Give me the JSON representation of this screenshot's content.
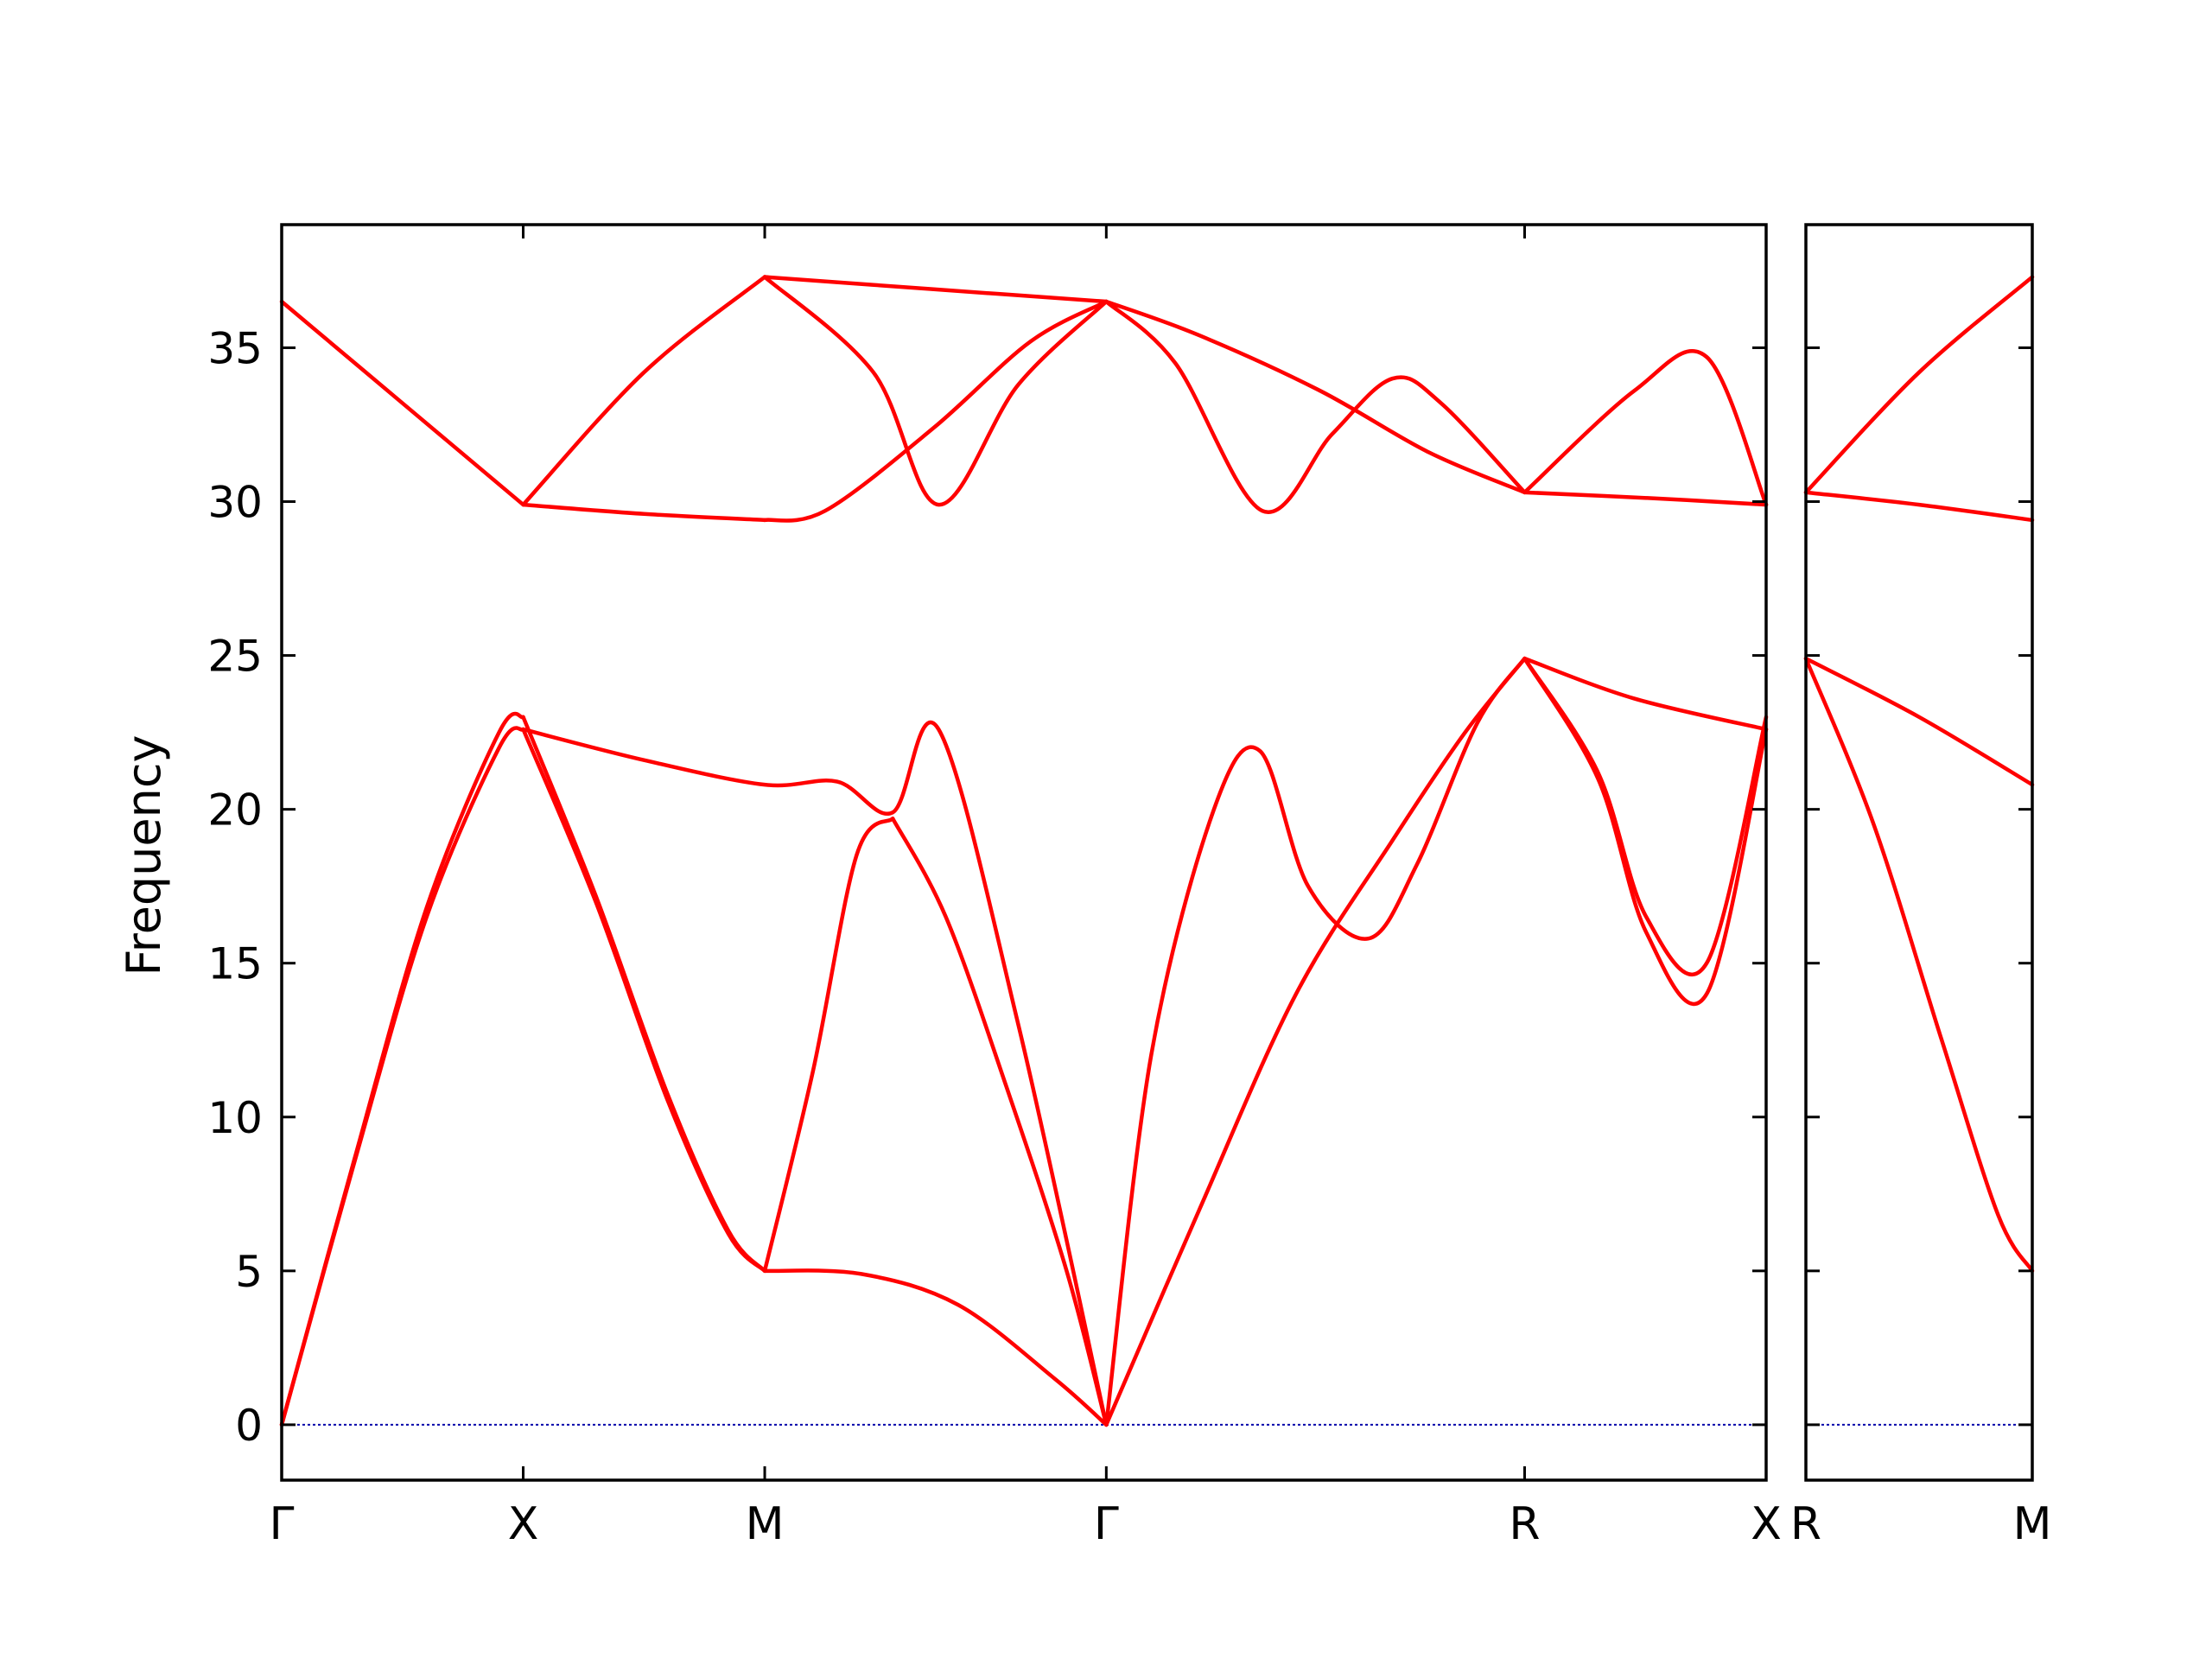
{
  "chart_data": {
    "type": "line",
    "ylabel": "Frequency",
    "ylim": [
      -1.8,
      39
    ],
    "y_ticks": [
      "0",
      "5",
      "10",
      "15",
      "20",
      "25",
      "30",
      "35"
    ],
    "line_color": "#ff0000",
    "zero_line_color": "#0000aa",
    "grid": false,
    "panels": [
      {
        "segment_labels": [
          "Γ",
          "X",
          "M",
          "Γ",
          "R",
          "X"
        ],
        "segment_positions": [
          0,
          1,
          2,
          3.4142,
          5.1463,
          6.1463
        ],
        "branches": [
          {
            "x": [
              0,
              0.5,
              1
            ],
            "y": [
              36.5,
              33.2,
              29.9
            ]
          },
          {
            "x": [
              1,
              1.5,
              2
            ],
            "y": [
              29.9,
              34.2,
              37.3
            ]
          },
          {
            "x": [
              1,
              1.5,
              2
            ],
            "y": [
              29.9,
              29.6,
              29.4
            ]
          },
          {
            "x": [
              2,
              2.7,
              3.4142
            ],
            "y": [
              37.3,
              36.9,
              36.5
            ]
          },
          {
            "x": [
              2,
              2.45,
              2.72,
              3.05,
              3.4142
            ],
            "y": [
              37.3,
              34.2,
              29.9,
              33.8,
              36.5
            ]
          },
          {
            "x": [
              2,
              2.25,
              2.7,
              3.1,
              3.4142
            ],
            "y": [
              29.4,
              29.7,
              32.4,
              35.2,
              36.5
            ]
          },
          {
            "x": [
              3.4142,
              3.8,
              4.3,
              4.75,
              5.1463
            ],
            "y": [
              36.5,
              35.4,
              33.6,
              31.6,
              30.3
            ]
          },
          {
            "x": [
              3.4142,
              3.7,
              4.06,
              4.35,
              4.6,
              4.8,
              5.1463
            ],
            "y": [
              36.5,
              34.5,
              29.7,
              32.2,
              34.0,
              33.2,
              30.3
            ]
          },
          {
            "x": [
              5.1463,
              5.6,
              5.9,
              6.1463
            ],
            "y": [
              30.3,
              33.6,
              34.7,
              29.9
            ]
          },
          {
            "x": [
              5.1463,
              5.7,
              6.1463
            ],
            "y": [
              30.3,
              30.1,
              29.9
            ]
          },
          {
            "x": [
              0,
              0.3,
              0.6,
              0.9,
              1
            ],
            "y": [
              0,
              8.5,
              16.5,
              22.0,
              22.6
            ]
          },
          {
            "x": [
              0,
              0.3,
              0.6,
              0.9,
              1
            ],
            "y": [
              0,
              8.6,
              16.8,
              22.5,
              23.0
            ]
          },
          {
            "x": [
              1,
              1.3,
              1.6,
              1.85,
              2
            ],
            "y": [
              22.6,
              17.0,
              10.5,
              6.2,
              5.0
            ]
          },
          {
            "x": [
              1,
              1.3,
              1.6,
              1.85,
              2
            ],
            "y": [
              23.0,
              17.2,
              10.7,
              6.3,
              5.0
            ]
          },
          {
            "x": [
              2,
              2.4,
              2.8,
              3.2,
              3.4142
            ],
            "y": [
              5.0,
              4.9,
              3.9,
              1.5,
              0
            ]
          },
          {
            "x": [
              2,
              2.2,
              2.38,
              2.53
            ],
            "y": [
              5.0,
              11.5,
              18.5,
              19.7
            ]
          },
          {
            "x": [
              2.53,
              2.75,
              3.0,
              3.25,
              3.4142
            ],
            "y": [
              19.7,
              16.5,
              11.0,
              5.0,
              0
            ]
          },
          {
            "x": [
              1,
              1.5,
              2,
              2.3,
              2.53,
              2.72,
              3.05,
              3.4142
            ],
            "y": [
              22.6,
              21.6,
              20.8,
              20.9,
              19.9,
              22.6,
              13.0,
              0
            ]
          },
          {
            "x": [
              3.4142,
              3.8,
              4.2,
              4.6,
              4.9,
              5.1463
            ],
            "y": [
              0,
              7.0,
              14.0,
              19.0,
              22.5,
              24.9
            ]
          },
          {
            "x": [
              3.4142,
              3.6,
              3.86,
              4.05,
              4.25,
              4.5,
              4.7,
              4.95,
              5.1463
            ],
            "y": [
              0,
              12.0,
              20.0,
              21.9,
              17.5,
              15.8,
              18.2,
              22.8,
              24.9
            ]
          },
          {
            "x": [
              5.1463,
              5.45,
              5.65,
              5.9,
              6.1463
            ],
            "y": [
              24.9,
              21.0,
              16.0,
              14.0,
              22.6
            ]
          },
          {
            "x": [
              5.1463,
              5.45,
              5.65,
              5.9,
              6.1463
            ],
            "y": [
              24.9,
              21.2,
              16.5,
              15.0,
              23.0
            ]
          },
          {
            "x": [
              5.1463,
              5.6,
              6.1463
            ],
            "y": [
              24.9,
              23.6,
              22.6
            ]
          }
        ]
      },
      {
        "segment_labels": [
          "R",
          "M"
        ],
        "segment_positions": [
          0,
          1
        ],
        "branches": [
          {
            "x": [
              0,
              0.5,
              1
            ],
            "y": [
              30.3,
              34.2,
              37.3
            ]
          },
          {
            "x": [
              0,
              0.5,
              1
            ],
            "y": [
              30.3,
              29.9,
              29.4
            ]
          },
          {
            "x": [
              0,
              0.5,
              1
            ],
            "y": [
              24.9,
              23.0,
              20.8
            ]
          },
          {
            "x": [
              0,
              0.3,
              0.6,
              0.85,
              1
            ],
            "y": [
              24.9,
              19.5,
              12.5,
              6.8,
              5.0
            ]
          }
        ]
      }
    ]
  }
}
